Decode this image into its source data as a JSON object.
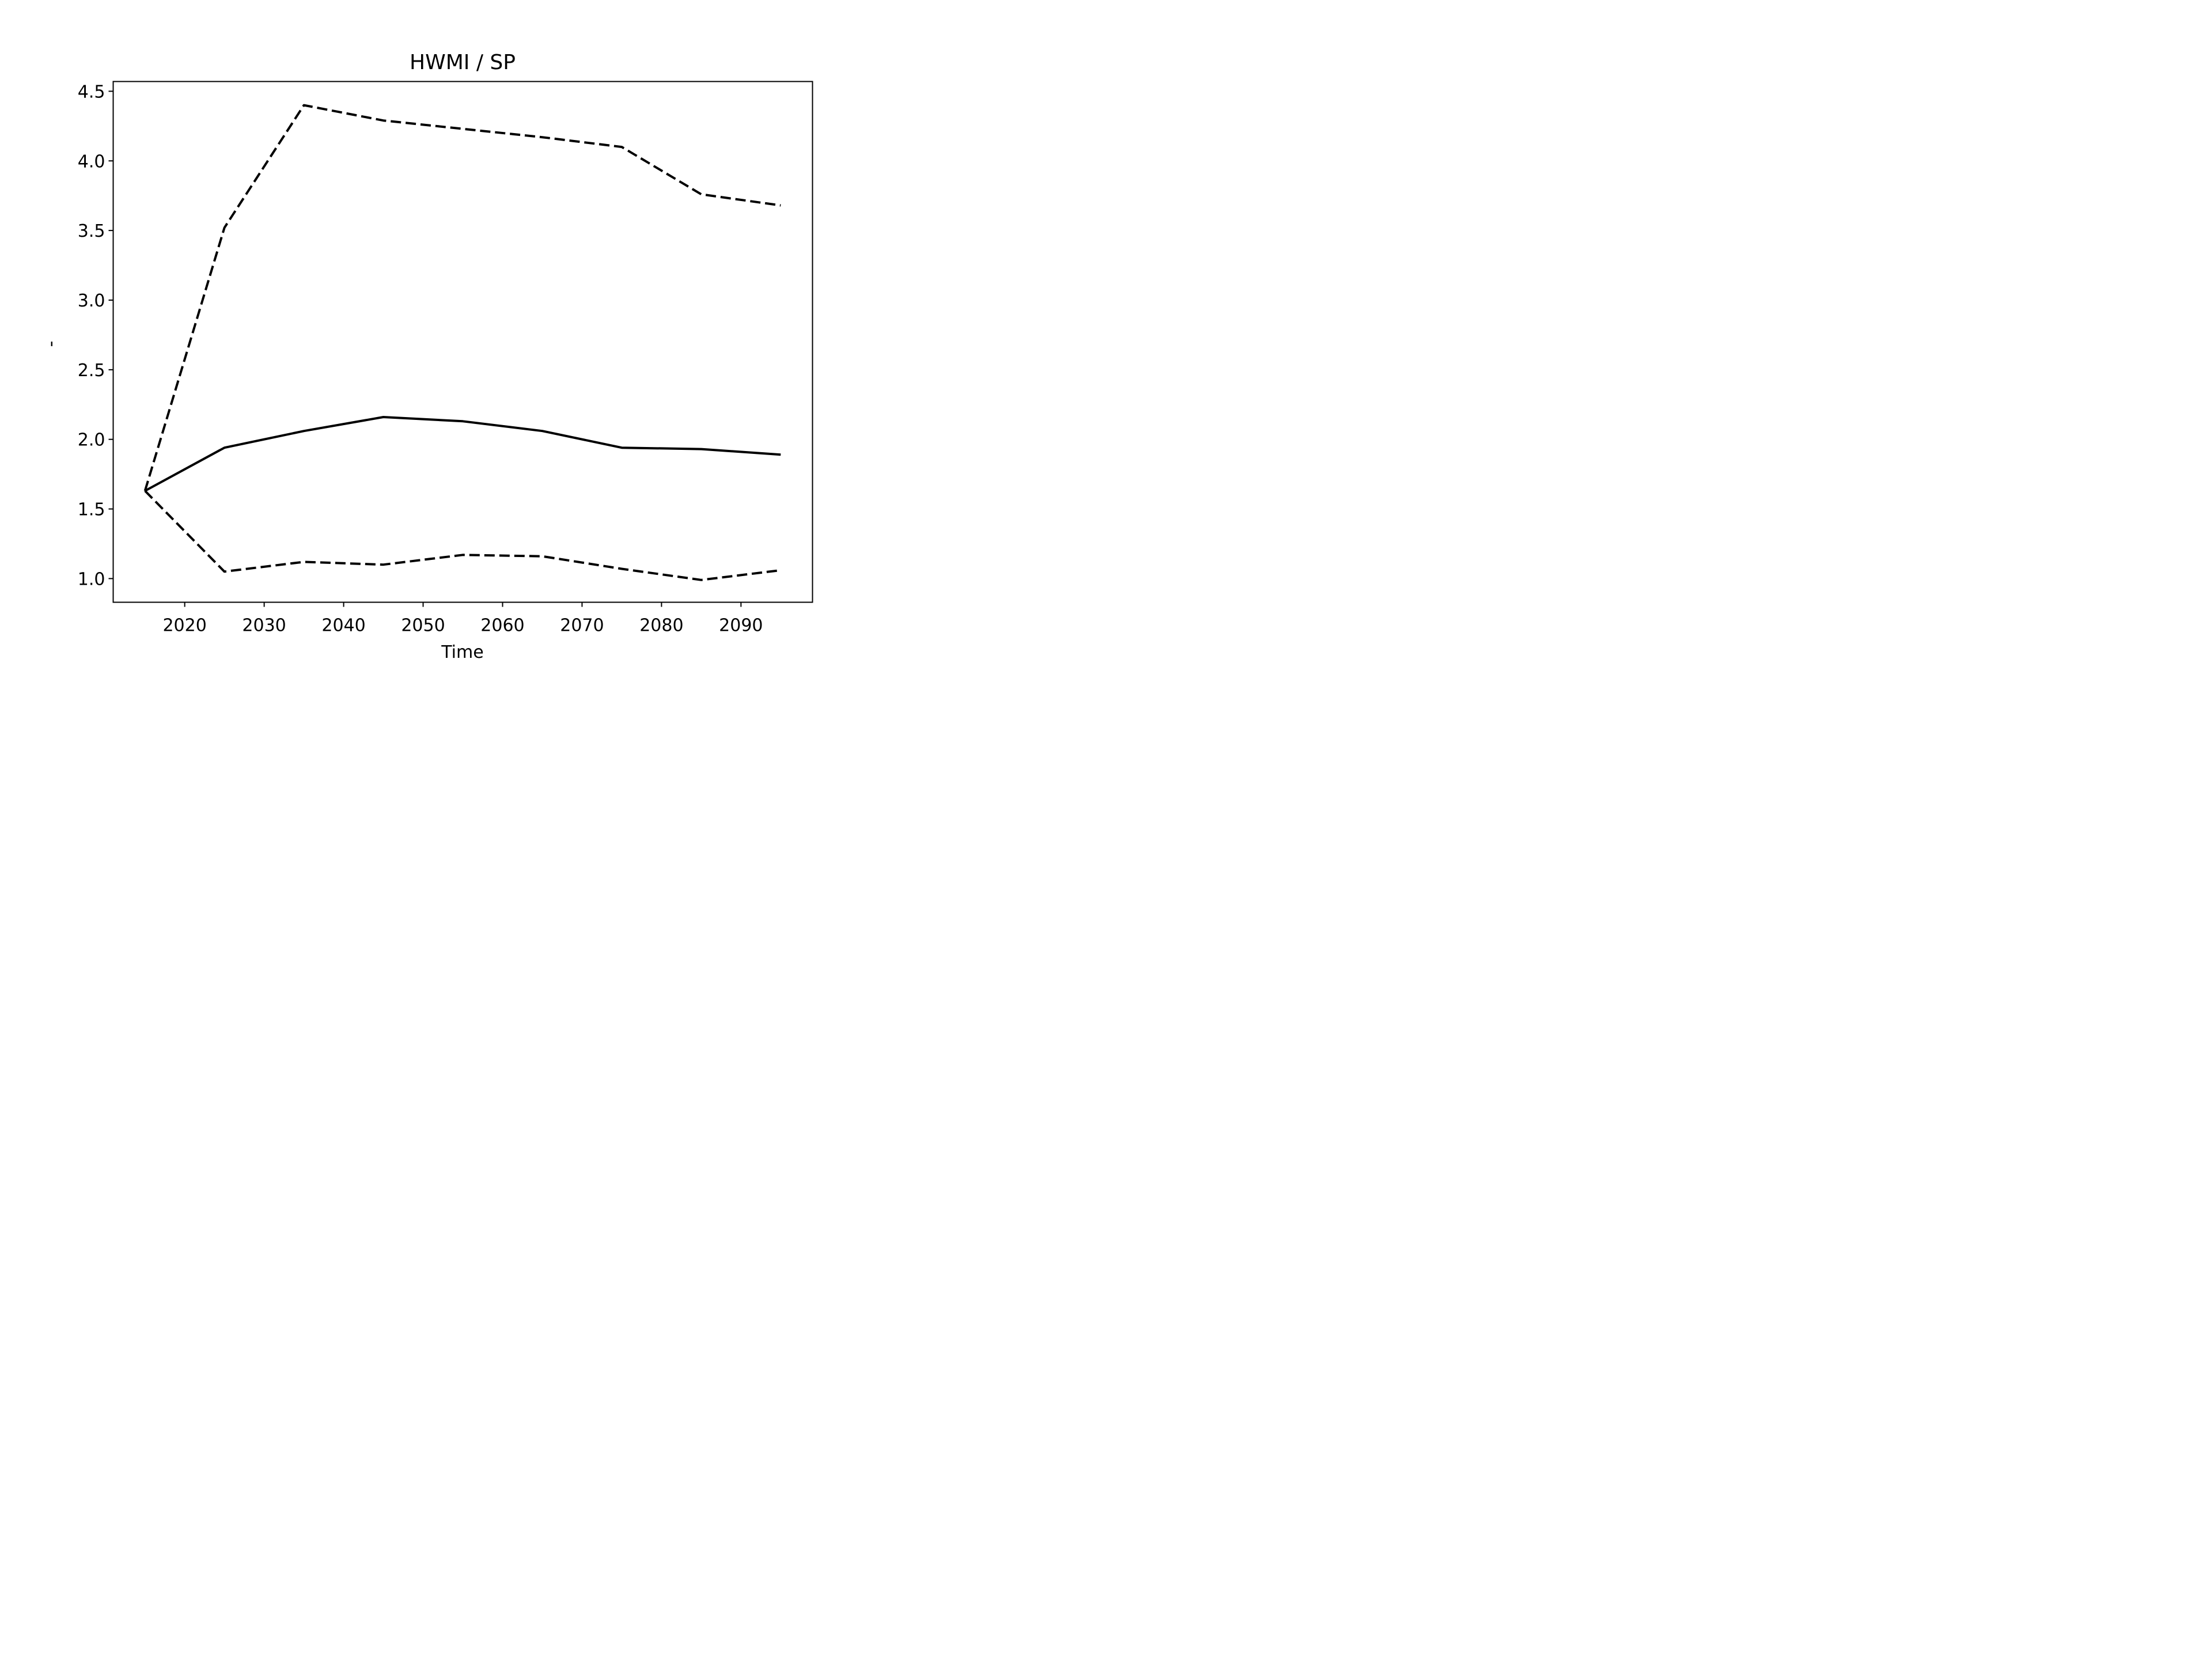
{
  "chart_data": {
    "type": "line",
    "title": "HWMI / SP",
    "xlabel": "Time",
    "ylabel": "-",
    "xlim": [
      2011,
      2099
    ],
    "ylim": [
      0.83,
      4.57
    ],
    "x_ticks": [
      2020,
      2030,
      2040,
      2050,
      2060,
      2070,
      2080,
      2090
    ],
    "y_ticks": [
      1.0,
      1.5,
      2.0,
      2.5,
      3.0,
      3.5,
      4.0,
      4.5
    ],
    "y_tick_labels": [
      "1.0",
      "1.5",
      "2.0",
      "2.5",
      "3.0",
      "3.5",
      "4.0",
      "4.5"
    ],
    "grid": false,
    "x": [
      2015,
      2025,
      2035,
      2045,
      2055,
      2065,
      2075,
      2085,
      2095
    ],
    "series": [
      {
        "style": "solid",
        "color": "#000000",
        "values": [
          1.63,
          1.94,
          2.06,
          2.16,
          2.13,
          2.06,
          1.94,
          1.93,
          1.89
        ]
      },
      {
        "style": "dashed",
        "color": "#000000",
        "values": [
          1.63,
          3.52,
          4.4,
          4.29,
          4.23,
          4.17,
          4.1,
          3.76,
          3.68
        ]
      },
      {
        "style": "dashed",
        "color": "#000000",
        "values": [
          1.63,
          1.05,
          1.12,
          1.1,
          1.17,
          1.16,
          1.07,
          0.99,
          1.06
        ]
      }
    ]
  }
}
